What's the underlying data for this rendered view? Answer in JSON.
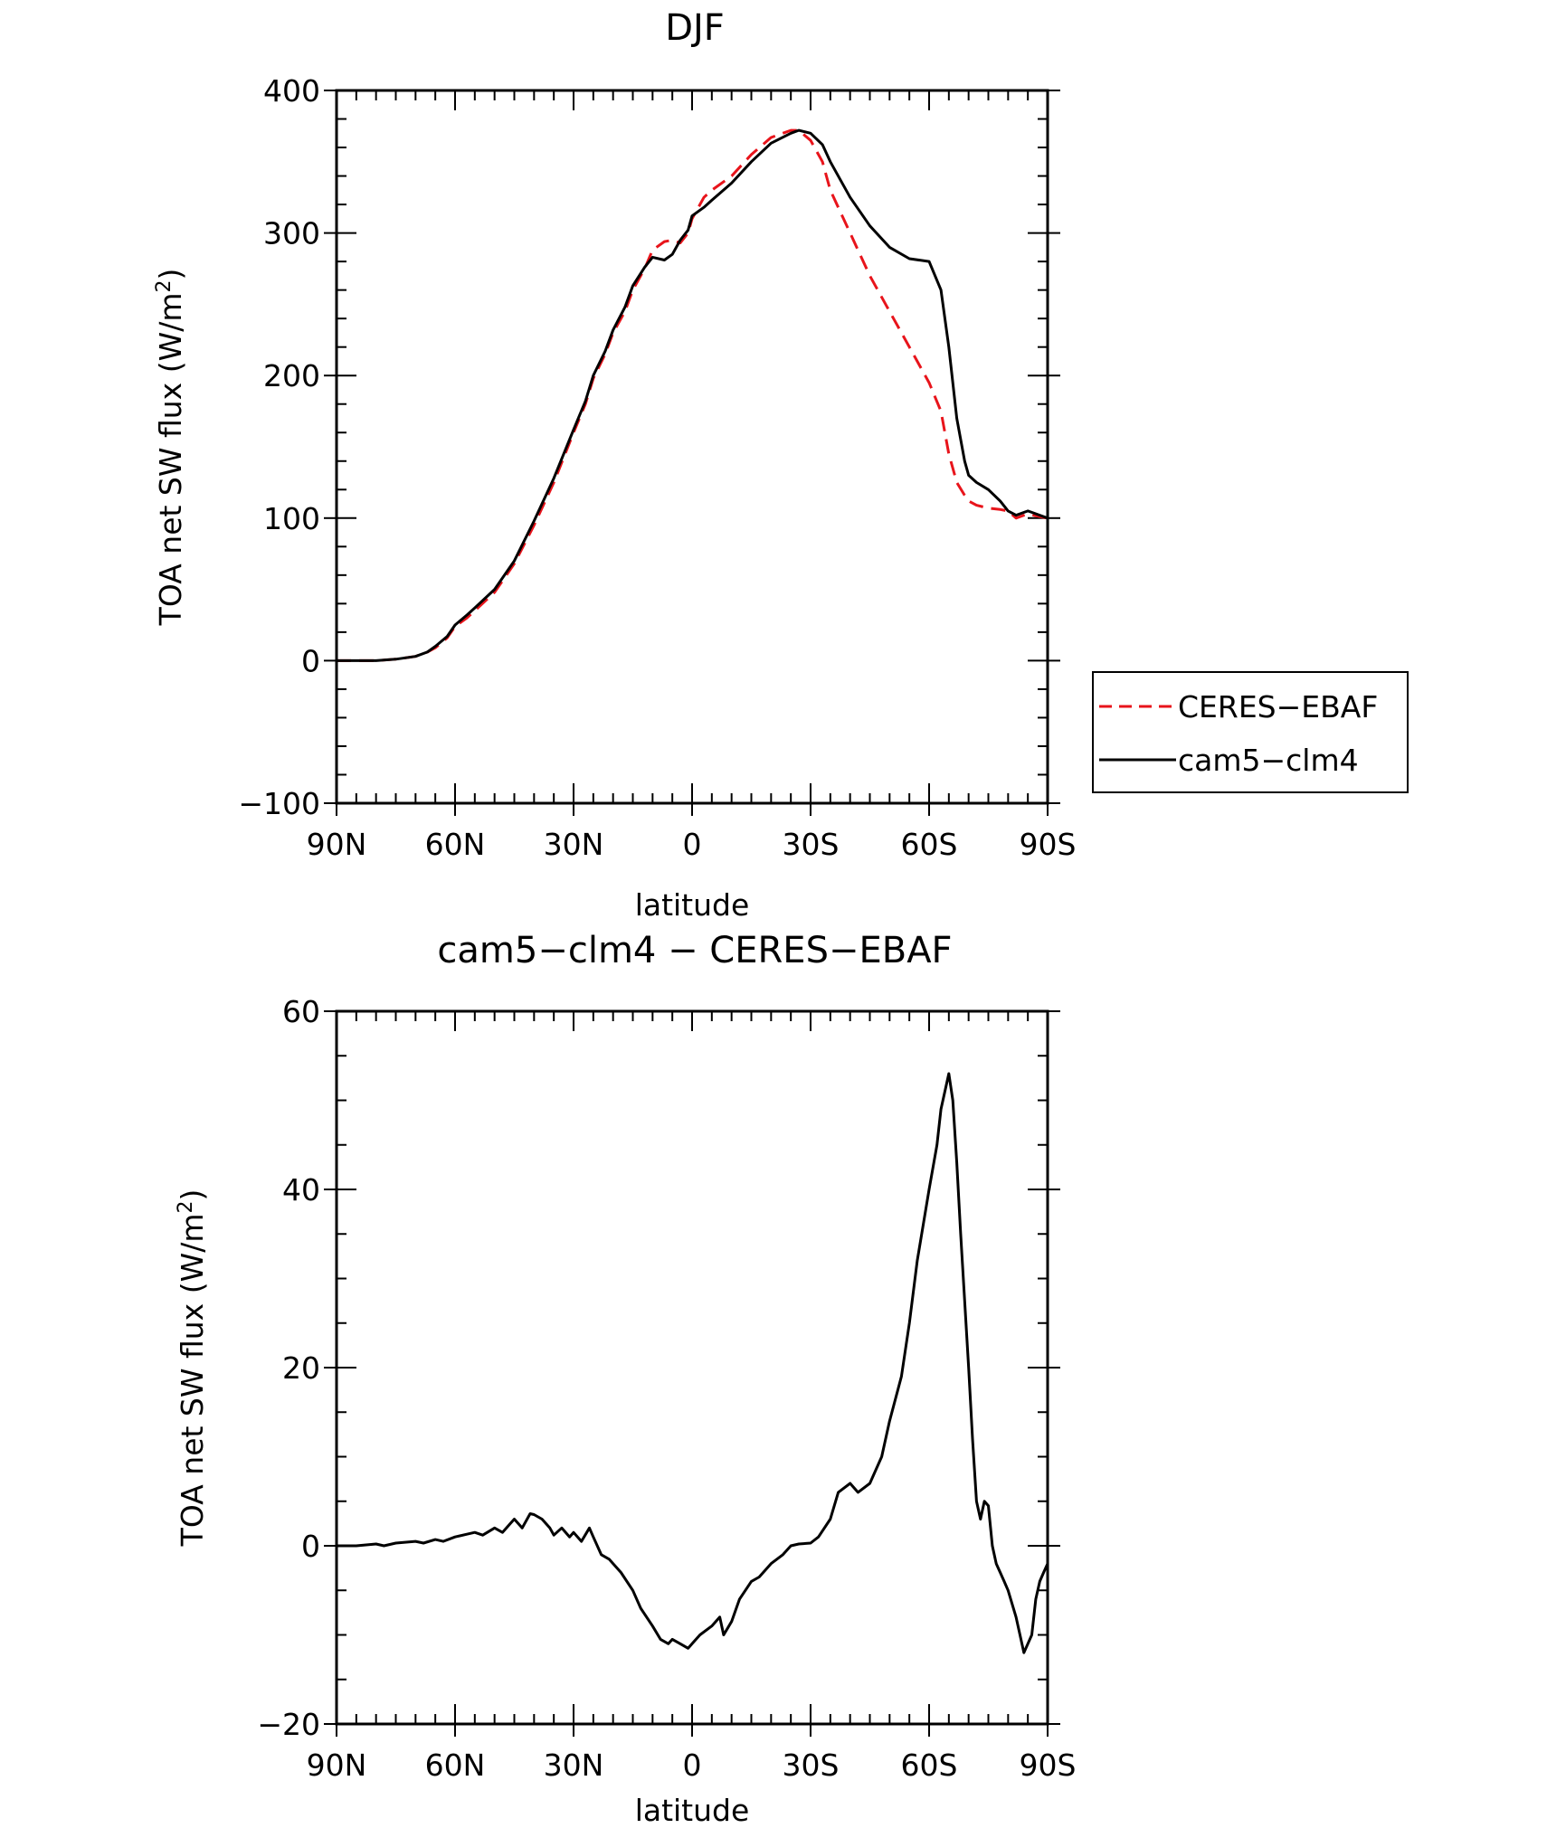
{
  "chart_data": [
    {
      "type": "line",
      "title": "DJF",
      "xlabel": "latitude",
      "ylabel": "TOA net SW flux (W/m2)",
      "ylabel_parts": {
        "main": "TOA net SW flux (W/m",
        "sup": "2",
        "end": ")"
      },
      "xlim": [
        90,
        -90
      ],
      "ylim": [
        -100,
        400
      ],
      "x_ticks": [
        {
          "value": 90,
          "label": "90N"
        },
        {
          "value": 60,
          "label": "60N"
        },
        {
          "value": 30,
          "label": "30N"
        },
        {
          "value": 0,
          "label": "0"
        },
        {
          "value": -30,
          "label": "30S"
        },
        {
          "value": -60,
          "label": "60S"
        },
        {
          "value": -90,
          "label": "90S"
        }
      ],
      "y_ticks": [
        {
          "value": 400,
          "label": "400"
        },
        {
          "value": 300,
          "label": "300"
        },
        {
          "value": 200,
          "label": "200"
        },
        {
          "value": 100,
          "label": "100"
        },
        {
          "value": 0,
          "label": "0"
        },
        {
          "value": -100,
          "label": "−100"
        }
      ],
      "legend_position": "right",
      "series": [
        {
          "name": "CERES−EBAF",
          "color": "#e8141b",
          "dash": "dashed",
          "x": [
            90,
            85,
            80,
            75,
            70,
            67,
            65,
            62,
            60,
            57,
            55,
            50,
            45,
            40,
            35,
            30,
            27,
            25,
            22,
            20,
            17,
            15,
            12,
            10,
            7,
            5,
            3,
            1,
            0,
            -3,
            -5,
            -10,
            -15,
            -20,
            -25,
            -27,
            -30,
            -33,
            -35,
            -40,
            -45,
            -50,
            -55,
            -60,
            -63,
            -65,
            -67,
            -69,
            -70,
            -72,
            -75,
            -78,
            -80,
            -82,
            -85,
            -88,
            -90
          ],
          "values": [
            0,
            0,
            0,
            1,
            3,
            6,
            9,
            16,
            24,
            30,
            35,
            48,
            68,
            95,
            125,
            160,
            180,
            198,
            215,
            230,
            245,
            260,
            275,
            288,
            294,
            295,
            293,
            300,
            310,
            325,
            330,
            340,
            355,
            367,
            372,
            372,
            365,
            350,
            330,
            300,
            270,
            245,
            220,
            195,
            175,
            145,
            125,
            116,
            112,
            109,
            107,
            106,
            105,
            100,
            103,
            101,
            100
          ]
        },
        {
          "name": "cam5−clm4",
          "color": "#000000",
          "dash": "solid",
          "x": [
            90,
            85,
            80,
            75,
            70,
            67,
            65,
            62,
            60,
            57,
            55,
            50,
            45,
            40,
            35,
            30,
            27,
            25,
            22,
            20,
            17,
            15,
            12,
            10,
            7,
            5,
            3,
            1,
            0,
            -3,
            -5,
            -10,
            -15,
            -20,
            -25,
            -27,
            -30,
            -33,
            -35,
            -40,
            -45,
            -50,
            -55,
            -60,
            -63,
            -65,
            -67,
            -69,
            -70,
            -72,
            -75,
            -78,
            -80,
            -82,
            -85,
            -88,
            -90
          ],
          "values": [
            0,
            0,
            0,
            1,
            3,
            6,
            10,
            17,
            25,
            32,
            37,
            50,
            70,
            98,
            128,
            162,
            182,
            200,
            217,
            232,
            248,
            263,
            276,
            283,
            281,
            285,
            295,
            302,
            312,
            318,
            323,
            335,
            350,
            363,
            370,
            372,
            370,
            362,
            350,
            325,
            305,
            290,
            282,
            280,
            260,
            220,
            170,
            140,
            130,
            125,
            120,
            112,
            105,
            102,
            105,
            102,
            100
          ]
        }
      ]
    },
    {
      "type": "line",
      "title": "cam5−clm4 − CERES−EBAF",
      "xlabel": "latitude",
      "ylabel": "TOA net SW flux (W/m2)",
      "ylabel_parts": {
        "main": "TOA net SW flux (W/m",
        "sup": "2",
        "end": ")"
      },
      "xlim": [
        90,
        -90
      ],
      "ylim": [
        -20,
        60
      ],
      "x_ticks": [
        {
          "value": 90,
          "label": "90N"
        },
        {
          "value": 60,
          "label": "60N"
        },
        {
          "value": 30,
          "label": "30N"
        },
        {
          "value": 0,
          "label": "0"
        },
        {
          "value": -30,
          "label": "30S"
        },
        {
          "value": -60,
          "label": "60S"
        },
        {
          "value": -90,
          "label": "90S"
        }
      ],
      "y_ticks": [
        {
          "value": 60,
          "label": "60"
        },
        {
          "value": 40,
          "label": "40"
        },
        {
          "value": 20,
          "label": "20"
        },
        {
          "value": 0,
          "label": "0"
        },
        {
          "value": -20,
          "label": "−20"
        }
      ],
      "series": [
        {
          "name": "cam5−clm4 − CERES−EBAF",
          "color": "#000000",
          "dash": "solid",
          "x": [
            90,
            85,
            80,
            78,
            75,
            70,
            68,
            65,
            63,
            60,
            57,
            55,
            53,
            50,
            48,
            46,
            45,
            43,
            41,
            40,
            38,
            36,
            35,
            33,
            31,
            30,
            28,
            26,
            25,
            23,
            21,
            20,
            18,
            15,
            13,
            10,
            8,
            6,
            5,
            3,
            1,
            0,
            -2,
            -5,
            -7,
            -8,
            -10,
            -12,
            -15,
            -17,
            -20,
            -23,
            -25,
            -27,
            -30,
            -32,
            -35,
            -37,
            -40,
            -42,
            -45,
            -48,
            -50,
            -53,
            -55,
            -57,
            -60,
            -62,
            -63,
            -65,
            -66,
            -67,
            -68,
            -70,
            -71,
            -72,
            -73,
            -74,
            -75,
            -76,
            -77,
            -78,
            -79,
            -80,
            -82,
            -84,
            -86,
            -87,
            -88,
            -89,
            -90
          ],
          "values": [
            0,
            0,
            0.2,
            0,
            0.3,
            0.5,
            0.3,
            0.7,
            0.5,
            1,
            1.3,
            1.5,
            1.2,
            2,
            1.5,
            2.5,
            3,
            2,
            3.6,
            3.5,
            3,
            2,
            1.2,
            2,
            1,
            1.5,
            0.5,
            2,
            1,
            -1,
            -1.5,
            -2,
            -3,
            -5,
            -7,
            -9,
            -10.5,
            -11,
            -10.5,
            -11,
            -11.5,
            -11,
            -10,
            -9,
            -8,
            -10,
            -8.5,
            -6,
            -4,
            -3.5,
            -2,
            -1,
            0,
            0.2,
            0.3,
            1,
            3,
            6,
            7,
            6,
            7,
            10,
            14,
            19,
            25,
            32,
            40,
            45,
            49,
            53,
            50,
            43,
            35,
            20,
            12,
            5,
            3,
            5,
            4.5,
            0,
            -2,
            -3,
            -4,
            -5,
            -8,
            -12,
            -10,
            -6,
            -4,
            -3,
            -2
          ]
        }
      ]
    }
  ]
}
